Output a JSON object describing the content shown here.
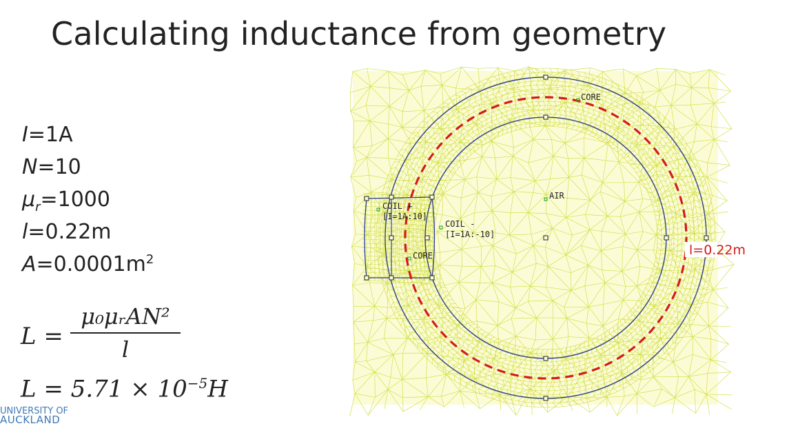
{
  "slide": {
    "title": "Calculating inductance from geometry"
  },
  "parameters": [
    {
      "symbol": "I",
      "value": "=1A"
    },
    {
      "symbol": "N",
      "value": "=10"
    },
    {
      "symbol": "μ",
      "sub": "r",
      "value": "=1000"
    },
    {
      "symbol": "l",
      "value": "=0.22m"
    },
    {
      "symbol": "A",
      "value": "=0.0001m",
      "sup": "2"
    }
  ],
  "formula": {
    "lhs": "L =",
    "numerator": "μ₀μᵣAN²",
    "denominator": "l",
    "result_lhs": "L = 5.71 × 10",
    "result_exp": "−5",
    "result_unit": "H"
  },
  "mesh": {
    "labels": {
      "core_top": "CORE",
      "air": "AIR",
      "coil_plus": "COIL +",
      "coil_plus_spec": "[I=1A:10]",
      "coil_minus": "COIL -",
      "coil_minus_spec": "[I=1A:-10]",
      "core_coil": "CORE"
    },
    "path_label": "l=0.22m",
    "colors": {
      "mesh": "#d4e04a",
      "background": "#fbfcd6",
      "boundary": "#2b3a9c",
      "path": "#d41a1a",
      "node": "#1a9a1a"
    }
  },
  "logo": {
    "line1": "UNIVERSITY OF",
    "line2": "AUCKLAND"
  }
}
